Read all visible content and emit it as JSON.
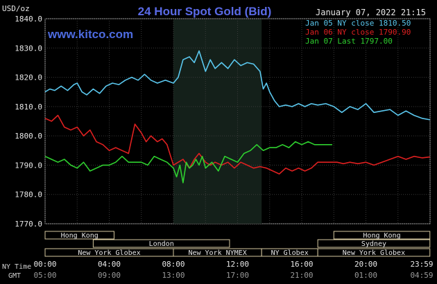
{
  "chart_data": {
    "type": "line",
    "title": "24 Hour Spot Gold (Bid)",
    "subtitle": "January 07, 2022 21:15",
    "watermark": "www.kitco.com",
    "ylabel": "USD/oz",
    "ylim": [
      1770,
      1840
    ],
    "yticks": [
      "1840.0",
      "1830.0",
      "1820.0",
      "1810.0",
      "1800.0",
      "1790.0",
      "1780.0",
      "1770.0"
    ],
    "xlim": [
      0,
      24
    ],
    "x_tick_labels_ny": [
      "00:00",
      "04:00",
      "08:00",
      "12:00",
      "16:00",
      "20:00",
      "23:59"
    ],
    "x_tick_labels_gmt": [
      "05:00",
      "09:00",
      "13:00",
      "17:00",
      "21:00",
      "01:00",
      "04:59"
    ],
    "x_axis_row_labels": [
      "NY Time",
      "GMT"
    ],
    "shaded_session": [
      8,
      13.5
    ],
    "legend": [
      {
        "text": "Jan 05 NY close 1810.50",
        "color": "#5bc8ef"
      },
      {
        "text": "Jan 06 NY close 1790.90",
        "color": "#e02020"
      },
      {
        "text": "Jan 07 Last 1797.00",
        "color": "#2fd12f"
      }
    ],
    "sessions": [
      {
        "label": "Hong Kong",
        "start": 0,
        "end": 4.3,
        "row": 0
      },
      {
        "label": "Hong Kong",
        "start": 18,
        "end": 23.99,
        "row": 0
      },
      {
        "label": "London",
        "start": 3,
        "end": 11.5,
        "row": 1
      },
      {
        "label": "Sydney",
        "start": 17,
        "end": 23.99,
        "row": 1
      },
      {
        "label": "New York Globex",
        "start": 0,
        "end": 8,
        "row": 2
      },
      {
        "label": "New York NYMEX",
        "start": 8,
        "end": 13.5,
        "row": 2
      },
      {
        "label": "NY Globex",
        "start": 13.5,
        "end": 17,
        "row": 2
      },
      {
        "label": "New York Globex",
        "start": 17,
        "end": 23.99,
        "row": 2
      }
    ],
    "series": [
      {
        "name": "Jan 05",
        "color": "#5bc8ef",
        "x": [
          0,
          0.3,
          0.6,
          1.0,
          1.4,
          1.8,
          2.0,
          2.3,
          2.6,
          3.0,
          3.4,
          3.8,
          4.2,
          4.6,
          5.0,
          5.4,
          5.8,
          6.2,
          6.6,
          7.0,
          7.5,
          8.0,
          8.3,
          8.6,
          9.0,
          9.3,
          9.6,
          10.0,
          10.3,
          10.6,
          11.0,
          11.4,
          11.8,
          12.2,
          12.6,
          13.0,
          13.4,
          13.6,
          13.8,
          14.0,
          14.3,
          14.6,
          15.0,
          15.4,
          15.8,
          16.2,
          16.6,
          17.0,
          17.5,
          18.0,
          18.5,
          19.0,
          19.5,
          20.0,
          20.5,
          21.0,
          21.5,
          22.0,
          22.5,
          23.0,
          23.5,
          23.99
        ],
        "values": [
          1815,
          1816,
          1815.5,
          1817,
          1815.5,
          1817.5,
          1818,
          1815,
          1814,
          1816,
          1814.5,
          1817,
          1818,
          1817.5,
          1819,
          1820,
          1819,
          1821,
          1819,
          1818,
          1819,
          1818,
          1820,
          1826,
          1827,
          1825,
          1829,
          1822,
          1826,
          1823,
          1825,
          1823,
          1826,
          1824,
          1825,
          1824.5,
          1822,
          1816,
          1818,
          1815,
          1812,
          1810,
          1810.5,
          1810,
          1811,
          1810,
          1811,
          1810.5,
          1811,
          1810,
          1808,
          1810,
          1809,
          1811,
          1808,
          1808.5,
          1809,
          1807,
          1808.5,
          1807,
          1806,
          1805.5
        ]
      },
      {
        "name": "Jan 06",
        "color": "#e02020",
        "x": [
          0,
          0.4,
          0.8,
          1.2,
          1.6,
          2.0,
          2.4,
          2.8,
          3.2,
          3.6,
          4.0,
          4.4,
          4.8,
          5.2,
          5.6,
          6.0,
          6.3,
          6.6,
          7.0,
          7.3,
          7.6,
          8.0,
          8.3,
          8.6,
          9.0,
          9.3,
          9.6,
          10.0,
          10.3,
          10.6,
          11.0,
          11.4,
          11.8,
          12.2,
          12.6,
          13.0,
          13.4,
          13.8,
          14.2,
          14.6,
          15.0,
          15.4,
          15.8,
          16.2,
          16.6,
          17.0,
          17.4,
          17.8,
          18.2,
          18.6,
          19.0,
          19.5,
          20.0,
          20.5,
          21.0,
          21.5,
          22.0,
          22.5,
          23.0,
          23.5,
          23.99
        ],
        "values": [
          1806,
          1805,
          1807,
          1803,
          1802,
          1803,
          1800,
          1802,
          1798,
          1797,
          1795,
          1796,
          1795,
          1794,
          1804,
          1801,
          1798,
          1800,
          1798,
          1799,
          1797,
          1790,
          1791,
          1792,
          1789,
          1792,
          1794,
          1791,
          1790,
          1791,
          1790,
          1791,
          1789,
          1791,
          1790,
          1789,
          1789.5,
          1789,
          1788,
          1787,
          1789,
          1788,
          1789,
          1788,
          1789,
          1791,
          1791,
          1791,
          1791,
          1790.5,
          1791,
          1790.5,
          1791,
          1790,
          1791,
          1792,
          1793,
          1792,
          1793,
          1792.5,
          1792.8
        ]
      },
      {
        "name": "Jan 07",
        "color": "#2fd12f",
        "x": [
          0,
          0.4,
          0.8,
          1.2,
          1.6,
          2.0,
          2.4,
          2.8,
          3.2,
          3.6,
          4.0,
          4.4,
          4.8,
          5.2,
          5.6,
          6.0,
          6.4,
          6.8,
          7.2,
          7.6,
          8.0,
          8.2,
          8.4,
          8.6,
          8.8,
          9.0,
          9.2,
          9.4,
          9.6,
          9.8,
          10.0,
          10.4,
          10.8,
          11.2,
          11.6,
          12.0,
          12.4,
          12.8,
          13.2,
          13.6,
          14.0,
          14.4,
          14.8,
          15.2,
          15.6,
          16.0,
          16.4,
          16.8,
          17.2,
          17.6,
          17.9
        ],
        "values": [
          1793,
          1792,
          1791,
          1792,
          1790,
          1789,
          1791,
          1788,
          1789,
          1790,
          1790,
          1791,
          1793,
          1791,
          1791,
          1791,
          1790,
          1793,
          1792,
          1791,
          1789,
          1786,
          1790,
          1784,
          1791,
          1789,
          1790,
          1792,
          1790,
          1793,
          1789,
          1791,
          1788,
          1793,
          1792,
          1791,
          1794,
          1795,
          1797,
          1795,
          1796,
          1796,
          1797,
          1796,
          1798,
          1797,
          1798,
          1797,
          1797,
          1797,
          1797
        ]
      }
    ]
  }
}
